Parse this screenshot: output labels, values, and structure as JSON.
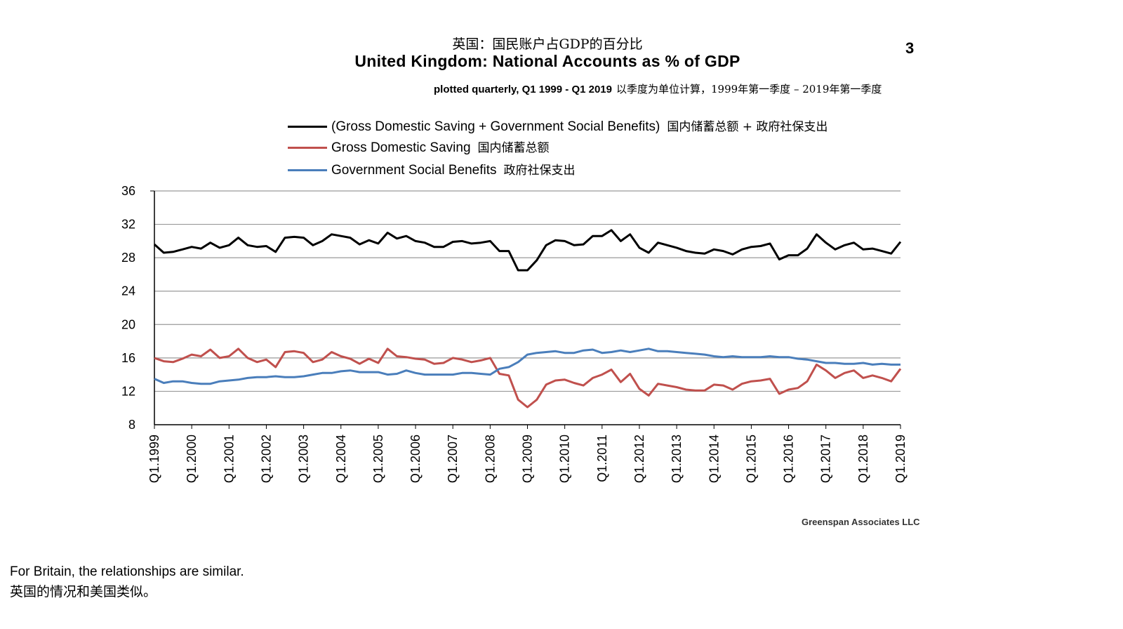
{
  "page_number": "3",
  "footer": {
    "note_en": "For Britain, the relationships are similar.",
    "note_zh": "英国的情况和美国类似。"
  },
  "chart_data": {
    "type": "line",
    "title_zh": "英国：国民账户占GDP的百分比",
    "title": "United Kingdom: National Accounts as % of GDP",
    "subtitle": "plotted quarterly, Q1 1999 - Q1 2019",
    "subtitle_zh": "以季度为单位计算，1999年第一季度 – 2019年第一季度",
    "source": "Greenspan Associates LLC",
    "xlabel": "",
    "ylabel": "",
    "ylim": [
      8,
      36
    ],
    "yticks": [
      8,
      12,
      16,
      20,
      24,
      28,
      32,
      36
    ],
    "grid": true,
    "legend_position": "top",
    "x_ticks": [
      "Q1.1999",
      "Q1.2000",
      "Q1.2001",
      "Q1.2002",
      "Q1.2003",
      "Q1.2004",
      "Q1.2005",
      "Q1.2006",
      "Q1.2007",
      "Q1.2008",
      "Q1.2009",
      "Q1.2010",
      "Q1.2011",
      "Q1.2012",
      "Q1.2013",
      "Q1.2014",
      "Q1.2015",
      "Q1.2016",
      "Q1.2017",
      "Q1.2018",
      "Q1.2019"
    ],
    "series": [
      {
        "name": "(Gross Domestic Saving + Government Social Benefits)",
        "name_zh": "国内储蓄总额 + 政府社保支出",
        "color": "#000000",
        "values": [
          29.6,
          28.6,
          28.7,
          29.0,
          29.3,
          29.1,
          29.8,
          29.2,
          29.5,
          30.4,
          29.5,
          29.3,
          29.4,
          28.7,
          30.4,
          30.5,
          30.4,
          29.5,
          30.0,
          30.8,
          30.6,
          30.4,
          29.6,
          30.1,
          29.7,
          31.0,
          30.3,
          30.6,
          30.0,
          29.8,
          29.3,
          29.3,
          29.9,
          30.0,
          29.7,
          29.8,
          30.0,
          28.8,
          28.8,
          26.5,
          26.5,
          27.7,
          29.5,
          30.1,
          30.0,
          29.5,
          29.6,
          30.6,
          30.6,
          31.3,
          30.0,
          30.8,
          29.2,
          28.6,
          29.8,
          29.5,
          29.2,
          28.8,
          28.6,
          28.5,
          29.0,
          28.8,
          28.4,
          29.0,
          29.3,
          29.4,
          29.7,
          27.8,
          28.3,
          28.3,
          29.1,
          30.8,
          29.8,
          29.0,
          29.5,
          29.8,
          29.0,
          29.1,
          28.8,
          28.5,
          29.9
        ]
      },
      {
        "name": "Gross Domestic Saving",
        "name_zh": "国内储蓄总额",
        "color": "#c0504d",
        "values": [
          16.0,
          15.6,
          15.5,
          15.9,
          16.4,
          16.2,
          17.0,
          16.0,
          16.2,
          17.1,
          16.0,
          15.5,
          15.8,
          14.9,
          16.7,
          16.8,
          16.6,
          15.5,
          15.8,
          16.7,
          16.2,
          15.9,
          15.3,
          15.9,
          15.4,
          17.1,
          16.2,
          16.1,
          15.9,
          15.8,
          15.3,
          15.4,
          16.0,
          15.8,
          15.5,
          15.7,
          16.0,
          14.1,
          13.9,
          11.0,
          10.1,
          11.0,
          12.8,
          13.3,
          13.4,
          13.0,
          12.7,
          13.6,
          14.0,
          14.6,
          13.1,
          14.1,
          12.3,
          11.5,
          12.9,
          12.7,
          12.5,
          12.2,
          12.1,
          12.1,
          12.8,
          12.7,
          12.2,
          12.9,
          13.2,
          13.3,
          13.5,
          11.7,
          12.2,
          12.4,
          13.2,
          15.2,
          14.5,
          13.6,
          14.2,
          14.5,
          13.6,
          13.9,
          13.6,
          13.2,
          14.7
        ]
      },
      {
        "name": "Government Social Benefits",
        "name_zh": "政府社保支出",
        "color": "#4a7ebb",
        "values": [
          13.5,
          13.0,
          13.2,
          13.2,
          13.0,
          12.9,
          12.9,
          13.2,
          13.3,
          13.4,
          13.6,
          13.7,
          13.7,
          13.8,
          13.7,
          13.7,
          13.8,
          14.0,
          14.2,
          14.2,
          14.4,
          14.5,
          14.3,
          14.3,
          14.3,
          14.0,
          14.1,
          14.5,
          14.2,
          14.0,
          14.0,
          14.0,
          14.0,
          14.2,
          14.2,
          14.1,
          14.0,
          14.7,
          14.9,
          15.5,
          16.4,
          16.6,
          16.7,
          16.8,
          16.6,
          16.6,
          16.9,
          17.0,
          16.6,
          16.7,
          16.9,
          16.7,
          16.9,
          17.1,
          16.8,
          16.8,
          16.7,
          16.6,
          16.5,
          16.4,
          16.2,
          16.1,
          16.2,
          16.1,
          16.1,
          16.1,
          16.2,
          16.1,
          16.1,
          15.9,
          15.8,
          15.6,
          15.4,
          15.4,
          15.3,
          15.3,
          15.4,
          15.2,
          15.3,
          15.2,
          15.2
        ]
      }
    ]
  }
}
